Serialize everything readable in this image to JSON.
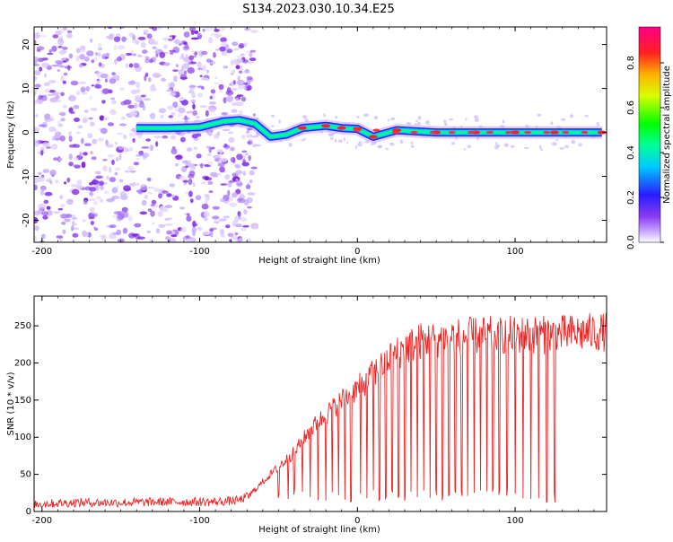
{
  "title": "S134.2023.030.10.34.E25",
  "colors": {
    "signal": "#ee2222",
    "background_speckle": "#8a3cf0"
  },
  "chart_data": [
    {
      "type": "heatmap",
      "xlabel": "Height of straight line (km)",
      "ylabel": "Frequency (Hz)",
      "xlim": [
        -205,
        158
      ],
      "ylim": [
        -25,
        24
      ],
      "xticks": [
        -200,
        -100,
        0,
        100
      ],
      "yticks": [
        -20,
        -10,
        0,
        10,
        20
      ],
      "colorbar": {
        "label": "Normalized spectral amplitude",
        "range": [
          0,
          1
        ],
        "ticks": [
          "0.0",
          "0.2",
          "0.4",
          "0.6",
          "0.8"
        ],
        "colormap": "gist_rainbow_r"
      },
      "ridge": [
        {
          "x": -140,
          "y": 1.0,
          "amp": 0.2
        },
        {
          "x": -120,
          "y": 1.0,
          "amp": 0.25
        },
        {
          "x": -100,
          "y": 1.2,
          "amp": 0.3
        },
        {
          "x": -85,
          "y": 2.5,
          "amp": 0.45
        },
        {
          "x": -75,
          "y": 2.8,
          "amp": 0.6
        },
        {
          "x": -65,
          "y": 2.0,
          "amp": 0.55
        },
        {
          "x": -55,
          "y": -1.0,
          "amp": 0.5
        },
        {
          "x": -45,
          "y": -0.5,
          "amp": 0.6
        },
        {
          "x": -35,
          "y": 1.0,
          "amp": 0.75
        },
        {
          "x": -20,
          "y": 1.5,
          "amp": 0.8
        },
        {
          "x": -10,
          "y": 1.0,
          "amp": 0.85
        },
        {
          "x": 0,
          "y": 0.8,
          "amp": 0.9
        },
        {
          "x": 10,
          "y": -1.0,
          "amp": 0.85
        },
        {
          "x": 25,
          "y": 0.5,
          "amp": 0.9
        },
        {
          "x": 50,
          "y": 0.0,
          "amp": 0.95
        },
        {
          "x": 75,
          "y": 0.0,
          "amp": 0.95
        },
        {
          "x": 100,
          "y": 0.0,
          "amp": 0.95
        },
        {
          "x": 125,
          "y": 0.0,
          "amp": 0.95
        },
        {
          "x": 155,
          "y": 0.0,
          "amp": 0.95
        }
      ]
    },
    {
      "type": "line",
      "xlabel": "Height of straight line (km)",
      "ylabel": "SNR (10 * v/v)",
      "xlim": [
        -205,
        158
      ],
      "ylim": [
        0,
        290
      ],
      "xticks": [
        -200,
        -100,
        0,
        100
      ],
      "yticks": [
        0,
        50,
        100,
        150,
        200,
        250
      ],
      "x": [
        -205,
        -180,
        -150,
        -120,
        -90,
        -75,
        -68,
        -60,
        -50,
        -40,
        -30,
        -20,
        -10,
        0,
        10,
        20,
        30,
        40,
        50,
        60,
        80,
        100,
        120,
        140,
        158
      ],
      "y": [
        10,
        12,
        12,
        13,
        13,
        15,
        22,
        40,
        60,
        80,
        110,
        130,
        150,
        165,
        185,
        205,
        220,
        230,
        232,
        235,
        237,
        238,
        238,
        240,
        242
      ],
      "dropouts": [
        -50,
        -44,
        -40,
        -35,
        -30,
        -25,
        -20,
        -16,
        -12,
        -8,
        -4,
        2,
        6,
        10,
        14,
        18,
        22,
        26,
        30,
        34,
        38,
        42,
        46,
        50,
        54,
        58,
        62,
        66,
        70,
        74,
        78,
        82,
        86,
        90,
        95,
        100,
        105,
        110,
        115,
        120,
        125
      ]
    }
  ]
}
